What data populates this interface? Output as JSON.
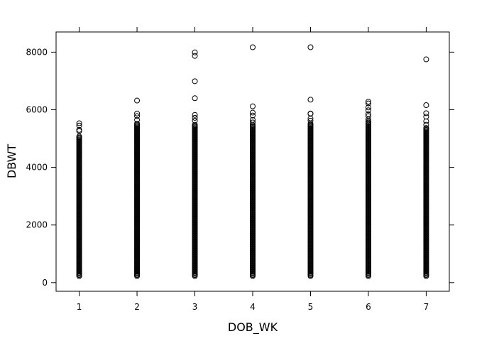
{
  "chart_data": {
    "type": "scatter",
    "title": "",
    "xlabel": "DOB_WK",
    "ylabel": "DBWT",
    "xlim": [
      0.6,
      7.4
    ],
    "ylim": [
      -300,
      8700
    ],
    "x_ticks": [
      1,
      2,
      3,
      4,
      5,
      6,
      7
    ],
    "y_ticks": [
      0,
      2000,
      4000,
      6000,
      8000
    ],
    "grid": false,
    "legend": "none",
    "marker": "open-circle",
    "marker_color": "#000000",
    "columns": [
      {
        "x": 1,
        "dense_range": [
          227,
          5100
        ],
        "points": [
          5530,
          5450,
          5300,
          5260
        ]
      },
      {
        "x": 2,
        "dense_range": [
          227,
          5550
        ],
        "points": [
          6320,
          5870,
          5780,
          5650
        ]
      },
      {
        "x": 3,
        "dense_range": [
          227,
          5500
        ],
        "points": [
          7990,
          7870,
          6990,
          6400,
          5820,
          5720,
          5620
        ]
      },
      {
        "x": 4,
        "dense_range": [
          227,
          5500
        ],
        "points": [
          8170,
          6120,
          5900,
          5800,
          5650,
          5560
        ]
      },
      {
        "x": 5,
        "dense_range": [
          227,
          5550
        ],
        "points": [
          8170,
          6350,
          5870,
          5860,
          5700,
          5620
        ]
      },
      {
        "x": 6,
        "dense_range": [
          227,
          5600
        ],
        "points": [
          6280,
          6220,
          6080,
          5980,
          5850,
          5780,
          5660
        ]
      },
      {
        "x": 7,
        "dense_range": [
          227,
          5400
        ],
        "points": [
          7750,
          6160,
          5880,
          5760,
          5600,
          5480
        ]
      }
    ]
  }
}
